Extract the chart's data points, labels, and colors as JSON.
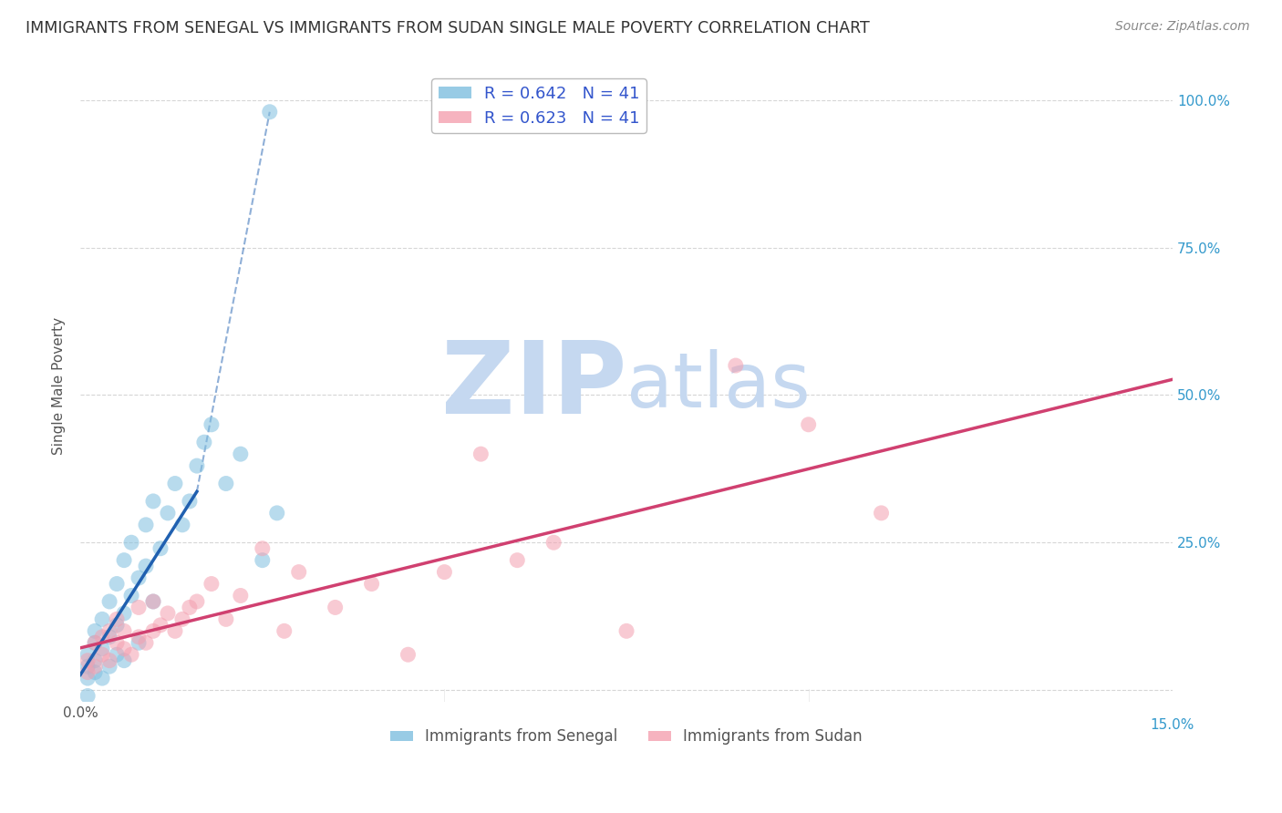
{
  "title": "IMMIGRANTS FROM SENEGAL VS IMMIGRANTS FROM SUDAN SINGLE MALE POVERTY CORRELATION CHART",
  "source": "Source: ZipAtlas.com",
  "legend_entries": [
    "Immigrants from Senegal",
    "Immigrants from Sudan"
  ],
  "R_senegal": 0.642,
  "N_senegal": 41,
  "R_sudan": 0.623,
  "N_sudan": 41,
  "color_senegal": "#7fbfdf",
  "color_sudan": "#f4a0b0",
  "color_line_senegal": "#2060b0",
  "color_line_sudan": "#d04070",
  "background": "#ffffff",
  "grid_color": "#cccccc",
  "title_color": "#333333",
  "stat_color": "#3355cc",
  "xlim": [
    0.0,
    0.15
  ],
  "ylim": [
    -0.02,
    1.05
  ],
  "yticks": [
    0.0,
    0.25,
    0.5,
    0.75,
    1.0
  ],
  "ytick_labels": [
    "",
    "25.0%",
    "50.0%",
    "75.0%",
    "100.0%"
  ],
  "xticks": [
    0.0,
    0.05,
    0.1,
    0.15
  ],
  "senegal_x": [
    0.001,
    0.001,
    0.001,
    0.001,
    0.002,
    0.002,
    0.002,
    0.002,
    0.003,
    0.003,
    0.003,
    0.004,
    0.004,
    0.004,
    0.005,
    0.005,
    0.005,
    0.006,
    0.006,
    0.006,
    0.007,
    0.007,
    0.008,
    0.008,
    0.009,
    0.009,
    0.01,
    0.01,
    0.011,
    0.012,
    0.013,
    0.014,
    0.015,
    0.016,
    0.017,
    0.018,
    0.02,
    0.022,
    0.025,
    0.027,
    0.026
  ],
  "senegal_y": [
    0.02,
    0.04,
    0.06,
    -0.01,
    0.05,
    0.08,
    0.03,
    0.1,
    0.07,
    0.12,
    0.02,
    0.09,
    0.15,
    0.04,
    0.11,
    0.18,
    0.06,
    0.13,
    0.22,
    0.05,
    0.16,
    0.25,
    0.19,
    0.08,
    0.21,
    0.28,
    0.15,
    0.32,
    0.24,
    0.3,
    0.35,
    0.28,
    0.32,
    0.38,
    0.42,
    0.45,
    0.35,
    0.4,
    0.22,
    0.3,
    0.98
  ],
  "sudan_x": [
    0.001,
    0.001,
    0.002,
    0.002,
    0.003,
    0.003,
    0.004,
    0.004,
    0.005,
    0.005,
    0.006,
    0.006,
    0.007,
    0.008,
    0.008,
    0.009,
    0.01,
    0.01,
    0.011,
    0.012,
    0.013,
    0.014,
    0.015,
    0.016,
    0.018,
    0.02,
    0.022,
    0.025,
    0.028,
    0.03,
    0.035,
    0.04,
    0.045,
    0.05,
    0.055,
    0.06,
    0.065,
    0.075,
    0.09,
    0.1,
    0.11
  ],
  "sudan_y": [
    0.03,
    0.05,
    0.04,
    0.08,
    0.06,
    0.09,
    0.05,
    0.1,
    0.08,
    0.12,
    0.07,
    0.1,
    0.06,
    0.09,
    0.14,
    0.08,
    0.1,
    0.15,
    0.11,
    0.13,
    0.1,
    0.12,
    0.14,
    0.15,
    0.18,
    0.12,
    0.16,
    0.24,
    0.1,
    0.2,
    0.14,
    0.18,
    0.06,
    0.2,
    0.4,
    0.22,
    0.25,
    0.1,
    0.55,
    0.45,
    0.3
  ],
  "watermark_zip": "ZIP",
  "watermark_atlas": "atlas",
  "watermark_color_zip": "#c5d8f0",
  "watermark_color_atlas": "#c5d8f0",
  "watermark_fontsize": 80
}
